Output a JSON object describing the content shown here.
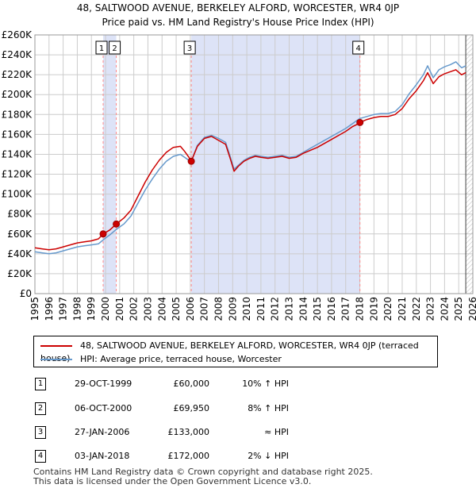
{
  "title_line1": "48, SALTWOOD AVENUE, BERKELEY ALFORD, WORCESTER, WR4 0JP",
  "title_line2": "Price paid vs. HM Land Registry's House Price Index (HPI)",
  "colors": {
    "property": "#cc0000",
    "hpi": "#6699cc",
    "shade": "#dde3f7",
    "grid": "#cccccc",
    "marker_line": "#ff8888"
  },
  "chart_data": {
    "type": "line",
    "title": "Price paid vs. HM Land Registry's House Price Index (HPI)",
    "xlabel": "",
    "ylabel": "",
    "xlim": [
      1995,
      2026
    ],
    "ylim": [
      0,
      260000
    ],
    "grid": true,
    "x_ticks": [
      "1995",
      "1996",
      "1997",
      "1998",
      "1999",
      "2000",
      "2001",
      "2002",
      "2003",
      "2004",
      "2005",
      "2006",
      "2007",
      "2008",
      "2009",
      "2010",
      "2011",
      "2012",
      "2013",
      "2014",
      "2015",
      "2016",
      "2017",
      "2018",
      "2019",
      "2020",
      "2021",
      "2022",
      "2023",
      "2024",
      "2025",
      "2026"
    ],
    "y_ticks": [
      {
        "value": 0,
        "label": "£0"
      },
      {
        "value": 20000,
        "label": "£20K"
      },
      {
        "value": 40000,
        "label": "£40K"
      },
      {
        "value": 60000,
        "label": "£60K"
      },
      {
        "value": 80000,
        "label": "£80K"
      },
      {
        "value": 100000,
        "label": "£100K"
      },
      {
        "value": 120000,
        "label": "£120K"
      },
      {
        "value": 140000,
        "label": "£140K"
      },
      {
        "value": 160000,
        "label": "£160K"
      },
      {
        "value": 180000,
        "label": "£180K"
      },
      {
        "value": 200000,
        "label": "£200K"
      },
      {
        "value": 220000,
        "label": "£220K"
      },
      {
        "value": 240000,
        "label": "£240K"
      },
      {
        "value": 260000,
        "label": "£260K"
      }
    ],
    "series": [
      {
        "name": "48, SALTWOOD AVENUE, BERKELEY ALFORD, WORCESTER, WR4 0JP (terraced house)",
        "color": "#cc0000",
        "x": [
          1995.0,
          1995.5,
          1996.0,
          1996.5,
          1997.0,
          1997.5,
          1998.0,
          1998.5,
          1999.0,
          1999.5,
          1999.83,
          2000.3,
          2000.76,
          2001.3,
          2001.8,
          2002.3,
          2002.8,
          2003.3,
          2003.8,
          2004.3,
          2004.8,
          2005.3,
          2005.6,
          2005.9,
          2006.07,
          2006.5,
          2007.0,
          2007.5,
          2008.0,
          2008.5,
          2008.8,
          2009.1,
          2009.4,
          2009.8,
          2010.2,
          2010.6,
          2011.0,
          2011.5,
          2012.0,
          2012.5,
          2013.0,
          2013.5,
          2014.0,
          2014.5,
          2015.0,
          2015.5,
          2016.0,
          2016.5,
          2017.0,
          2017.5,
          2017.8,
          2018.01,
          2018.5,
          2019.0,
          2019.5,
          2020.0,
          2020.5,
          2021.0,
          2021.5,
          2022.0,
          2022.5,
          2022.8,
          2023.2,
          2023.6,
          2024.0,
          2024.4,
          2024.8,
          2025.2,
          2025.5
        ],
        "y": [
          46000,
          45000,
          44000,
          45000,
          47000,
          49000,
          51000,
          52000,
          53000,
          55000,
          60000,
          64000,
          69950,
          76000,
          84000,
          98000,
          112000,
          124000,
          134000,
          142000,
          147000,
          148000,
          143000,
          137000,
          133000,
          148000,
          156000,
          158000,
          154000,
          150000,
          137000,
          123000,
          128000,
          133000,
          136000,
          138000,
          137000,
          136000,
          137000,
          138000,
          136000,
          137000,
          141000,
          144000,
          147000,
          151000,
          155000,
          159000,
          163000,
          168000,
          170000,
          172000,
          175000,
          177000,
          178000,
          178000,
          180000,
          186000,
          196000,
          204000,
          214000,
          222000,
          211000,
          218000,
          221000,
          223000,
          225000,
          220000,
          222000
        ]
      },
      {
        "name": "HPI: Average price, terraced house, Worcester",
        "color": "#6699cc",
        "x": [
          1995.0,
          1995.5,
          1996.0,
          1996.5,
          1997.0,
          1997.5,
          1998.0,
          1998.5,
          1999.0,
          1999.5,
          1999.83,
          2000.3,
          2000.76,
          2001.3,
          2001.8,
          2002.3,
          2002.8,
          2003.3,
          2003.8,
          2004.3,
          2004.8,
          2005.3,
          2005.6,
          2005.9,
          2006.07,
          2006.5,
          2007.0,
          2007.5,
          2008.0,
          2008.5,
          2008.8,
          2009.1,
          2009.4,
          2009.8,
          2010.2,
          2010.6,
          2011.0,
          2011.5,
          2012.0,
          2012.5,
          2013.0,
          2013.5,
          2014.0,
          2014.5,
          2015.0,
          2015.5,
          2016.0,
          2016.5,
          2017.0,
          2017.5,
          2017.8,
          2018.01,
          2018.5,
          2019.0,
          2019.5,
          2020.0,
          2020.5,
          2021.0,
          2021.5,
          2022.0,
          2022.5,
          2022.8,
          2023.2,
          2023.6,
          2024.0,
          2024.4,
          2024.8,
          2025.2,
          2025.5
        ],
        "y": [
          42000,
          41000,
          40000,
          41000,
          43000,
          45000,
          47000,
          48000,
          49000,
          50000,
          54000,
          59000,
          64500,
          70000,
          78000,
          91000,
          104000,
          115000,
          125000,
          133000,
          138000,
          140000,
          137000,
          134000,
          133000,
          149000,
          157000,
          159000,
          156000,
          152000,
          139000,
          125000,
          129000,
          134000,
          137000,
          139000,
          138000,
          137000,
          138000,
          139000,
          137000,
          138000,
          142000,
          146000,
          150000,
          154000,
          158000,
          162000,
          166000,
          171000,
          174000,
          176000,
          178000,
          180000,
          181000,
          181000,
          183000,
          190000,
          201000,
          210000,
          220000,
          229000,
          217000,
          225000,
          228000,
          230000,
          233000,
          227000,
          229000
        ]
      }
    ],
    "shaded_spans": [
      [
        1999.83,
        2000.76
      ],
      [
        2006.07,
        2018.01
      ]
    ],
    "sales": [
      {
        "label": "1",
        "x": 1999.83,
        "price": 60000
      },
      {
        "label": "2",
        "x": 2000.76,
        "price": 69950
      },
      {
        "label": "3",
        "x": 2006.07,
        "price": 133000
      },
      {
        "label": "4",
        "x": 2018.01,
        "price": 172000
      }
    ],
    "future_line_x": 2025.5
  },
  "legend": {
    "property_label": "48, SALTWOOD AVENUE, BERKELEY ALFORD, WORCESTER, WR4 0JP (terraced house)",
    "hpi_label": "HPI: Average price, terraced house, Worcester"
  },
  "transactions": [
    {
      "num": "1",
      "date": "29-OCT-1999",
      "price": "£60,000",
      "hpi": "10% ↑ HPI"
    },
    {
      "num": "2",
      "date": "06-OCT-2000",
      "price": "£69,950",
      "hpi": "8% ↑ HPI"
    },
    {
      "num": "3",
      "date": "27-JAN-2006",
      "price": "£133,000",
      "hpi": "≈ HPI"
    },
    {
      "num": "4",
      "date": "03-JAN-2018",
      "price": "£172,000",
      "hpi": "2% ↓ HPI"
    }
  ],
  "footer_line1": "Contains HM Land Registry data © Crown copyright and database right 2025.",
  "footer_line2": "This data is licensed under the Open Government Licence v3.0."
}
